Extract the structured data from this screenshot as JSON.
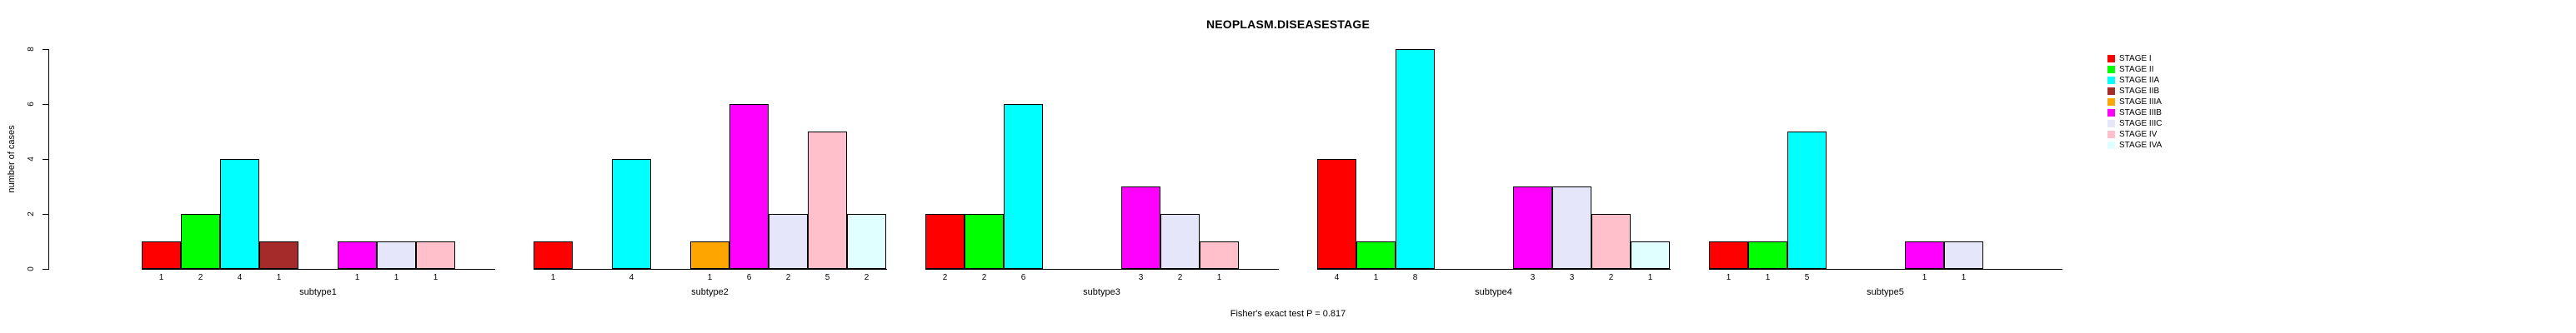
{
  "title": "NEOPLASM.DISEASESTAGE",
  "chart_data": {
    "type": "bar",
    "title": "NEOPLASM.DISEASESTAGE",
    "xlabel": "",
    "ylabel": "number of cases",
    "ylim": [
      0,
      8
    ],
    "yticks": [
      0,
      2,
      4,
      6,
      8
    ],
    "grid": false,
    "legend_position": "right",
    "annotation": "Fisher's exact test P = 0.817",
    "categories": [
      "subtype1",
      "subtype2",
      "subtype3",
      "subtype4",
      "subtype5"
    ],
    "series": [
      {
        "name": "STAGE I",
        "color": "#FF0000",
        "values": [
          1,
          1,
          2,
          4,
          1
        ]
      },
      {
        "name": "STAGE II",
        "color": "#00FF00",
        "values": [
          2,
          0,
          2,
          1,
          1
        ]
      },
      {
        "name": "STAGE IIA",
        "color": "#00FFFF",
        "values": [
          4,
          4,
          6,
          8,
          5
        ]
      },
      {
        "name": "STAGE IIB",
        "color": "#A52A2A",
        "values": [
          1,
          0,
          0,
          0,
          0
        ]
      },
      {
        "name": "STAGE IIIA",
        "color": "#FFA500",
        "values": [
          0,
          1,
          0,
          0,
          0
        ]
      },
      {
        "name": "STAGE IIIB",
        "color": "#FF00FF",
        "values": [
          1,
          6,
          3,
          3,
          1
        ]
      },
      {
        "name": "STAGE IIIC",
        "color": "#E6E6FA",
        "values": [
          1,
          2,
          2,
          3,
          1
        ]
      },
      {
        "name": "STAGE IV",
        "color": "#FFC0CB",
        "values": [
          1,
          5,
          1,
          2,
          0
        ]
      },
      {
        "name": "STAGE IVA",
        "color": "#E0FFFF",
        "values": [
          0,
          2,
          0,
          1,
          0
        ]
      }
    ],
    "bar_value_labels_shown_for_nonzero_bars": true
  }
}
